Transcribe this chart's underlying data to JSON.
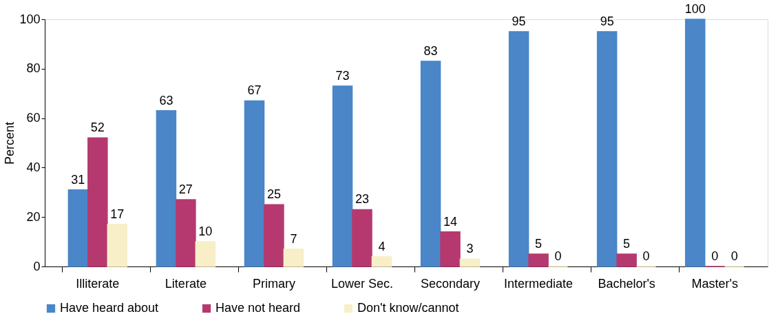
{
  "chart_data": {
    "type": "bar",
    "ylabel": "Percent",
    "categories": [
      "Illiterate",
      "Literate",
      "Primary",
      "Lower Sec.",
      "Secondary",
      "Intermediate",
      "Bachelor's",
      "Master's"
    ],
    "series": [
      {
        "name": "Have heard about",
        "color": "#4a86c8",
        "values": [
          31,
          63,
          67,
          73,
          83,
          95,
          95,
          100
        ]
      },
      {
        "name": "Have not heard",
        "color": "#b5396f",
        "values": [
          52,
          27,
          25,
          23,
          14,
          5,
          5,
          0
        ]
      },
      {
        "name": "Don't know/cannot",
        "color": "#f8efc8",
        "values": [
          17,
          10,
          7,
          4,
          3,
          0,
          0,
          0
        ]
      }
    ],
    "ylim": [
      0,
      100
    ],
    "yticks": [
      0,
      20,
      40,
      60,
      80,
      100
    ],
    "grid": false,
    "legend": "bottom",
    "data_labels": true
  }
}
